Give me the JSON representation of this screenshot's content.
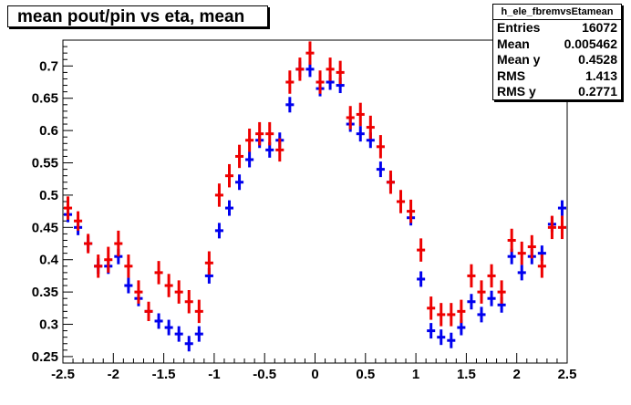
{
  "title": "mean pout/pin vs eta, mean",
  "stats": {
    "name": "h_ele_fbremvsEtamean",
    "rows": [
      {
        "label": "Entries",
        "value": "16072"
      },
      {
        "label": "Mean",
        "value": "0.005462"
      },
      {
        "label": "Mean y",
        "value": "0.4528"
      },
      {
        "label": "RMS",
        "value": "1.413"
      },
      {
        "label": "RMS y",
        "value": "0.2771"
      }
    ]
  },
  "chart_data": {
    "type": "scatter",
    "title": "mean pout/pin vs eta, mean",
    "xlabel": "",
    "ylabel": "",
    "xlim": [
      -2.5,
      2.5
    ],
    "ylim": [
      0.24,
      0.74
    ],
    "xticks": [
      "-2.5",
      "-2",
      "-1.5",
      "-1",
      "-0.5",
      "0",
      "0.5",
      "1",
      "1.5",
      "2",
      "2.5"
    ],
    "yticks": [
      "0.25",
      "0.3",
      "0.35",
      "0.4",
      "0.45",
      "0.5",
      "0.55",
      "0.6",
      "0.65",
      "0.7"
    ],
    "bin_width": 0.1,
    "series": [
      {
        "color": "#0000ee",
        "x": [
          -2.45,
          -2.35,
          -2.25,
          -2.15,
          -2.05,
          -1.95,
          -1.85,
          -1.75,
          -1.65,
          -1.55,
          -1.45,
          -1.35,
          -1.25,
          -1.15,
          -1.05,
          -0.95,
          -0.85,
          -0.75,
          -0.65,
          -0.55,
          -0.45,
          -0.35,
          -0.25,
          -0.15,
          -0.05,
          0.05,
          0.15,
          0.25,
          0.35,
          0.45,
          0.55,
          0.65,
          0.75,
          0.85,
          0.95,
          1.05,
          1.15,
          1.25,
          1.35,
          1.45,
          1.55,
          1.65,
          1.75,
          1.85,
          1.95,
          2.05,
          2.15,
          2.25,
          2.35,
          2.45
        ],
        "y": [
          0.47,
          0.45,
          0.425,
          0.39,
          0.39,
          0.405,
          0.36,
          0.34,
          0.32,
          0.305,
          0.295,
          0.285,
          0.27,
          0.285,
          0.375,
          0.445,
          0.48,
          0.52,
          0.555,
          0.585,
          0.57,
          0.585,
          0.64,
          0.695,
          0.695,
          0.665,
          0.675,
          0.67,
          0.61,
          0.595,
          0.585,
          0.54,
          0.52,
          0.49,
          0.465,
          0.37,
          0.29,
          0.28,
          0.275,
          0.295,
          0.335,
          0.315,
          0.34,
          0.33,
          0.405,
          0.38,
          0.405,
          0.41,
          0.455,
          0.48
        ],
        "yerr": [
          0.012,
          0.012,
          0.012,
          0.012,
          0.012,
          0.012,
          0.012,
          0.012,
          0.012,
          0.012,
          0.012,
          0.012,
          0.012,
          0.012,
          0.012,
          0.012,
          0.012,
          0.012,
          0.012,
          0.012,
          0.012,
          0.012,
          0.012,
          0.012,
          0.012,
          0.012,
          0.012,
          0.012,
          0.012,
          0.012,
          0.012,
          0.012,
          0.012,
          0.012,
          0.012,
          0.012,
          0.012,
          0.012,
          0.012,
          0.012,
          0.012,
          0.012,
          0.012,
          0.012,
          0.012,
          0.012,
          0.012,
          0.012,
          0.012,
          0.012
        ]
      },
      {
        "color": "#ee0000",
        "x": [
          -2.45,
          -2.35,
          -2.25,
          -2.15,
          -2.05,
          -1.95,
          -1.85,
          -1.75,
          -1.65,
          -1.55,
          -1.45,
          -1.35,
          -1.25,
          -1.15,
          -1.05,
          -0.95,
          -0.85,
          -0.75,
          -0.65,
          -0.55,
          -0.45,
          -0.35,
          -0.25,
          -0.15,
          -0.05,
          0.05,
          0.15,
          0.25,
          0.35,
          0.45,
          0.55,
          0.65,
          0.75,
          0.85,
          0.95,
          1.05,
          1.15,
          1.25,
          1.35,
          1.45,
          1.55,
          1.65,
          1.75,
          1.85,
          1.95,
          2.05,
          2.15,
          2.25,
          2.35,
          2.45
        ],
        "y": [
          0.48,
          0.46,
          0.425,
          0.39,
          0.4,
          0.425,
          0.39,
          0.35,
          0.32,
          0.38,
          0.36,
          0.35,
          0.335,
          0.32,
          0.395,
          0.5,
          0.53,
          0.56,
          0.585,
          0.595,
          0.595,
          0.57,
          0.675,
          0.695,
          0.72,
          0.675,
          0.695,
          0.69,
          0.62,
          0.625,
          0.605,
          0.575,
          0.52,
          0.49,
          0.475,
          0.415,
          0.325,
          0.315,
          0.315,
          0.32,
          0.375,
          0.35,
          0.375,
          0.35,
          0.43,
          0.41,
          0.42,
          0.39,
          0.45,
          0.45
        ],
        "yerr": [
          0.018,
          0.015,
          0.015,
          0.018,
          0.02,
          0.02,
          0.018,
          0.018,
          0.015,
          0.018,
          0.018,
          0.018,
          0.018,
          0.018,
          0.018,
          0.018,
          0.018,
          0.018,
          0.018,
          0.018,
          0.018,
          0.018,
          0.018,
          0.018,
          0.018,
          0.018,
          0.018,
          0.018,
          0.018,
          0.018,
          0.018,
          0.018,
          0.018,
          0.018,
          0.018,
          0.018,
          0.018,
          0.018,
          0.018,
          0.018,
          0.018,
          0.018,
          0.018,
          0.018,
          0.018,
          0.018,
          0.018,
          0.018,
          0.018,
          0.018
        ]
      }
    ]
  }
}
